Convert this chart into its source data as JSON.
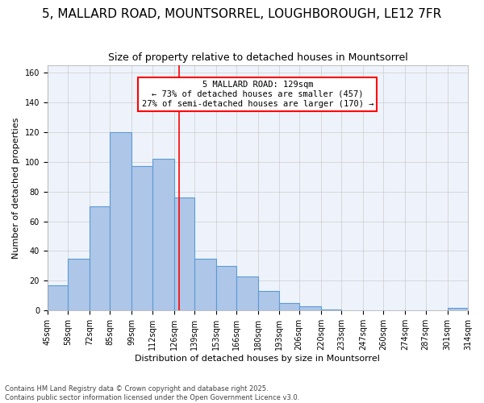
{
  "title": "5, MALLARD ROAD, MOUNTSORREL, LOUGHBOROUGH, LE12 7FR",
  "subtitle": "Size of property relative to detached houses in Mountsorrel",
  "xlabel": "Distribution of detached houses by size in Mountsorrel",
  "ylabel": "Number of detached properties",
  "footnote1": "Contains HM Land Registry data © Crown copyright and database right 2025.",
  "footnote2": "Contains public sector information licensed under the Open Government Licence v3.0.",
  "bar_labels": [
    "45sqm",
    "58sqm",
    "72sqm",
    "85sqm",
    "99sqm",
    "112sqm",
    "126sqm",
    "139sqm",
    "153sqm",
    "166sqm",
    "180sqm",
    "193sqm",
    "206sqm",
    "220sqm",
    "233sqm",
    "247sqm",
    "260sqm",
    "274sqm",
    "287sqm",
    "301sqm",
    "314sqm"
  ],
  "bar_values": [
    17,
    35,
    70,
    120,
    97,
    102,
    76,
    35,
    30,
    23,
    13,
    5,
    3,
    1,
    0,
    0,
    0,
    0,
    0,
    2
  ],
  "bin_edges": [
    45,
    58,
    72,
    85,
    99,
    112,
    126,
    139,
    153,
    166,
    180,
    193,
    206,
    220,
    233,
    247,
    260,
    274,
    287,
    301,
    314
  ],
  "bar_color": "#aec6e8",
  "bar_edge_color": "#5b9bd5",
  "vline_x": 129,
  "vline_color": "red",
  "annotation_box_text": "5 MALLARD ROAD: 129sqm\n← 73% of detached houses are smaller (457)\n27% of semi-detached houses are larger (170) →",
  "ylim": [
    0,
    165
  ],
  "yticks": [
    0,
    20,
    40,
    60,
    80,
    100,
    120,
    140,
    160
  ],
  "grid_color": "#cccccc",
  "bg_color": "#eef3fb",
  "title_fontsize": 11,
  "subtitle_fontsize": 9,
  "annotation_fontsize": 7.5,
  "axis_label_fontsize": 8,
  "tick_fontsize": 7
}
